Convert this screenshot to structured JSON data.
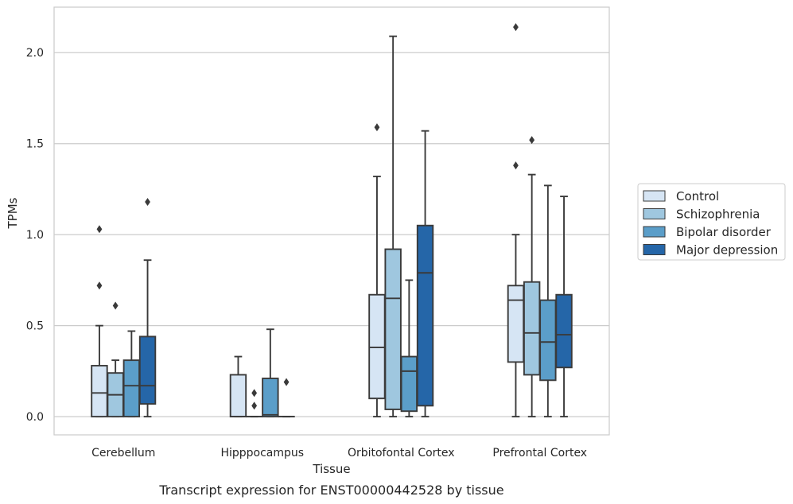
{
  "chart_data": {
    "type": "boxplot",
    "title": "",
    "caption": "Transcript expression for ENST00000442528 by tissue",
    "xlabel": "Tissue",
    "ylabel": "TPMs",
    "ylim": [
      -0.1,
      2.25
    ],
    "yticks": [
      0.0,
      0.5,
      1.0,
      1.5,
      2.0
    ],
    "ytick_labels": [
      "0.0",
      "0.5",
      "1.0",
      "1.5",
      "2.0"
    ],
    "grid": "horizontal",
    "legend_position": "right",
    "categories": [
      "Cerebellum",
      "Hipppocampus",
      "Orbitofontal Cortex",
      "Prefrontal Cortex"
    ],
    "series": [
      {
        "name": "Control",
        "color": "#d6e5f4",
        "boxes": [
          {
            "whislo": 0.0,
            "q1": 0.0,
            "med": 0.13,
            "q3": 0.28,
            "whishi": 0.5,
            "fliers": [
              0.72,
              1.03
            ]
          },
          {
            "whislo": 0.0,
            "q1": 0.0,
            "med": 0.0,
            "q3": 0.23,
            "whishi": 0.33,
            "fliers": []
          },
          {
            "whislo": 0.0,
            "q1": 0.1,
            "med": 0.38,
            "q3": 0.67,
            "whishi": 1.32,
            "fliers": [
              1.59
            ]
          },
          {
            "whislo": 0.0,
            "q1": 0.3,
            "med": 0.64,
            "q3": 0.72,
            "whishi": 1.0,
            "fliers": [
              1.38,
              2.14
            ]
          }
        ]
      },
      {
        "name": "Schizophrenia",
        "color": "#9fc7df",
        "boxes": [
          {
            "whislo": 0.0,
            "q1": 0.0,
            "med": 0.12,
            "q3": 0.24,
            "whishi": 0.31,
            "fliers": [
              0.61
            ]
          },
          {
            "whislo": 0.0,
            "q1": 0.0,
            "med": 0.0,
            "q3": 0.0,
            "whishi": 0.0,
            "fliers": [
              0.06,
              0.13
            ]
          },
          {
            "whislo": 0.0,
            "q1": 0.04,
            "med": 0.65,
            "q3": 0.92,
            "whishi": 2.09,
            "fliers": []
          },
          {
            "whislo": 0.0,
            "q1": 0.23,
            "med": 0.46,
            "q3": 0.74,
            "whishi": 1.33,
            "fliers": [
              1.52
            ]
          }
        ]
      },
      {
        "name": "Bipolar disorder",
        "color": "#5b9ec9",
        "boxes": [
          {
            "whislo": 0.0,
            "q1": 0.0,
            "med": 0.17,
            "q3": 0.31,
            "whishi": 0.47,
            "fliers": []
          },
          {
            "whislo": 0.0,
            "q1": 0.0,
            "med": 0.01,
            "q3": 0.21,
            "whishi": 0.48,
            "fliers": []
          },
          {
            "whislo": 0.0,
            "q1": 0.03,
            "med": 0.25,
            "q3": 0.33,
            "whishi": 0.75,
            "fliers": []
          },
          {
            "whislo": 0.0,
            "q1": 0.2,
            "med": 0.41,
            "q3": 0.64,
            "whishi": 1.27,
            "fliers": []
          }
        ]
      },
      {
        "name": "Major depression",
        "color": "#2566a8",
        "boxes": [
          {
            "whislo": 0.0,
            "q1": 0.07,
            "med": 0.17,
            "q3": 0.44,
            "whishi": 0.86,
            "fliers": [
              1.18
            ]
          },
          {
            "whislo": 0.0,
            "q1": 0.0,
            "med": 0.0,
            "q3": 0.0,
            "whishi": 0.0,
            "fliers": [
              0.19
            ]
          },
          {
            "whislo": 0.0,
            "q1": 0.06,
            "med": 0.79,
            "q3": 1.05,
            "whishi": 1.57,
            "fliers": []
          },
          {
            "whislo": 0.0,
            "q1": 0.27,
            "med": 0.45,
            "q3": 0.67,
            "whishi": 1.21,
            "fliers": []
          }
        ]
      }
    ]
  }
}
